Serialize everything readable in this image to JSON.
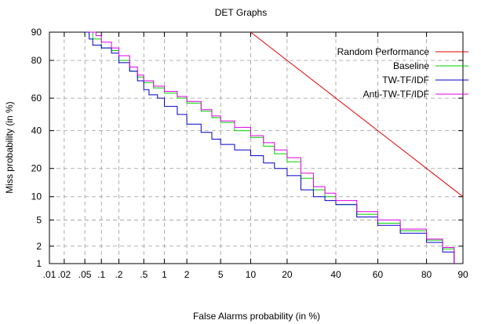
{
  "chart_data": {
    "type": "line",
    "title": "DET Graphs",
    "xlabel": "False Alarms probability (in %)",
    "ylabel": "Miss probability (in %)",
    "x_scale": "normal-deviate (probit)",
    "y_scale": "normal-deviate (probit)",
    "xlim": [
      0.01,
      90
    ],
    "ylim": [
      1,
      90
    ],
    "x_ticks": [
      ".01",
      ".02",
      ".05",
      ".1",
      ".2",
      ".5",
      "1",
      "2",
      "5",
      "10",
      "20",
      "40",
      "60",
      "80",
      "90"
    ],
    "x_tick_values": [
      0.01,
      0.02,
      0.05,
      0.1,
      0.2,
      0.5,
      1,
      2,
      5,
      10,
      20,
      40,
      60,
      80,
      90
    ],
    "y_ticks": [
      "1",
      "2",
      "5",
      "10",
      "20",
      "40",
      "60",
      "80",
      "90"
    ],
    "y_tick_values": [
      1,
      2,
      5,
      10,
      20,
      40,
      60,
      80,
      90
    ],
    "grid": true,
    "legend_position": "top-right",
    "series": [
      {
        "name": "Random Performance",
        "color": "#e00000",
        "x": [
          10,
          90
        ],
        "y": [
          90,
          10
        ]
      },
      {
        "name": "Baseline",
        "color": "#00d000",
        "x": [
          0.05,
          0.07,
          0.1,
          0.15,
          0.2,
          0.3,
          0.4,
          0.5,
          0.7,
          1,
          1.5,
          2,
          3,
          4,
          5,
          7,
          10,
          13,
          16,
          20,
          25,
          30,
          35,
          40,
          50,
          60,
          70,
          80,
          85,
          88
        ],
        "y": [
          90,
          88,
          85,
          84,
          80,
          75,
          72,
          69,
          66,
          63,
          60,
          57,
          52,
          48,
          45,
          40,
          36,
          31,
          27,
          23,
          16,
          12,
          10,
          8,
          6,
          4.5,
          3.5,
          2.5,
          1.8,
          1
        ]
      },
      {
        "name": "TW-TF/IDF",
        "color": "#0000c8",
        "x": [
          0.05,
          0.06,
          0.07,
          0.1,
          0.15,
          0.2,
          0.3,
          0.4,
          0.5,
          0.6,
          0.8,
          1,
          1.5,
          2,
          3,
          4,
          5,
          7,
          10,
          13,
          16,
          20,
          25,
          30,
          35,
          40,
          50,
          60,
          70,
          80,
          85,
          88
        ],
        "y": [
          90,
          88,
          86,
          85,
          83,
          79,
          75,
          70,
          65,
          62,
          60,
          55,
          50,
          44,
          39,
          35,
          32,
          29,
          26,
          22.5,
          20,
          17,
          12,
          10,
          9,
          8,
          5.5,
          4.2,
          3.2,
          2.3,
          1.6,
          1
        ]
      },
      {
        "name": "Anti-TW-TF/IDF",
        "color": "#e000e0",
        "x": [
          0.06,
          0.08,
          0.1,
          0.15,
          0.2,
          0.3,
          0.4,
          0.5,
          0.7,
          1,
          1.5,
          2,
          3,
          4,
          5,
          7,
          10,
          13,
          16,
          20,
          25,
          30,
          35,
          40,
          50,
          60,
          70,
          80,
          85,
          88
        ],
        "y": [
          90,
          89,
          87,
          85,
          82,
          77,
          73,
          70,
          67,
          64,
          61,
          58,
          53,
          49,
          46,
          42,
          37,
          33,
          29,
          25,
          18,
          13,
          11,
          9,
          6.5,
          5,
          3.7,
          2.6,
          1.9,
          1
        ]
      }
    ]
  }
}
